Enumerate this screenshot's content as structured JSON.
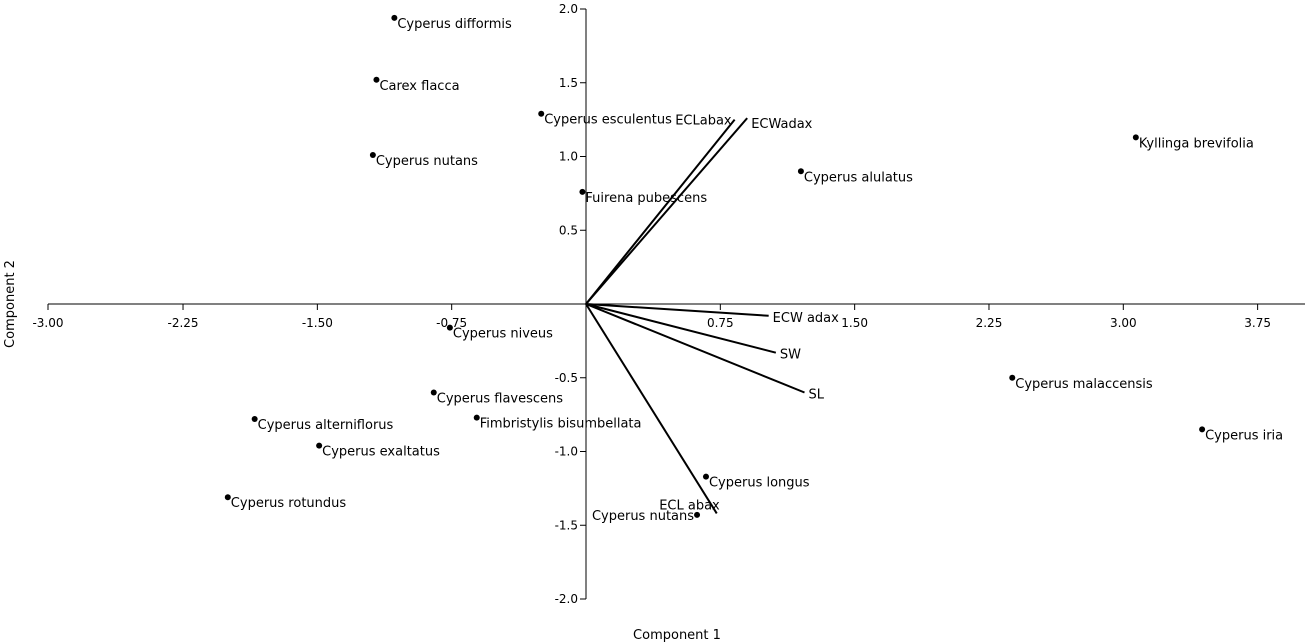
{
  "chart_data": {
    "type": "scatter",
    "xlabel": "Component 1",
    "ylabel": "Component 2",
    "xlim": [
      -3.0,
      4.0
    ],
    "ylim": [
      -2.0,
      2.0
    ],
    "x_ticks": [
      "-3.00",
      "-2.25",
      "-1.50",
      "-0.75",
      "0.75",
      "1.50",
      "2.25",
      "3.00",
      "3.75"
    ],
    "x_tick_values": [
      -3.0,
      -2.25,
      -1.5,
      -0.75,
      0.75,
      1.5,
      2.25,
      3.0,
      3.75
    ],
    "y_ticks": [
      "2.0",
      "1.5",
      "1.0",
      "0.5",
      "-0.5",
      "-1.0",
      "-1.5",
      "-2.0"
    ],
    "y_tick_values": [
      2.0,
      1.5,
      1.0,
      0.5,
      -0.5,
      -1.0,
      -1.5,
      -2.0
    ],
    "points": [
      {
        "label": "Cyperus difformis",
        "x": -1.07,
        "y": 1.94
      },
      {
        "label": "Carex flacca",
        "x": -1.17,
        "y": 1.52
      },
      {
        "label": "Cyperus esculentus",
        "x": -0.25,
        "y": 1.29
      },
      {
        "label": "Cyperus nutans",
        "x": -1.19,
        "y": 1.01
      },
      {
        "label": "Fuirena pubescens",
        "x": -0.02,
        "y": 0.76
      },
      {
        "label": "Cyperus alulatus",
        "x": 1.2,
        "y": 0.9
      },
      {
        "label": "Kyllinga brevifolia",
        "x": 3.07,
        "y": 1.13
      },
      {
        "label": "Cyperus niveus",
        "x": -0.76,
        "y": -0.16
      },
      {
        "label": "Cyperus flavescens",
        "x": -0.85,
        "y": -0.6
      },
      {
        "label": "Fimbristylis bisumbellata",
        "x": -0.61,
        "y": -0.77
      },
      {
        "label": "Cyperus alterniflorus",
        "x": -1.85,
        "y": -0.78
      },
      {
        "label": "Cyperus exaltatus",
        "x": -1.49,
        "y": -0.96
      },
      {
        "label": "Cyperus rotundus",
        "x": -2.0,
        "y": -1.31
      },
      {
        "label": "Cyperus malaccensis",
        "x": 2.38,
        "y": -0.5
      },
      {
        "label": "Cyperus iria",
        "x": 3.44,
        "y": -0.85
      },
      {
        "label": "Cyperus longus",
        "x": 0.67,
        "y": -1.17
      },
      {
        "label": "Cyperus nutans",
        "x": 0.62,
        "y": -1.43
      }
    ],
    "vectors": [
      {
        "label": "ECLabax",
        "x": 0.83,
        "y": 1.25
      },
      {
        "label": "ECWadax",
        "x": 0.9,
        "y": 1.26
      },
      {
        "label": "ECW adax",
        "x": 1.02,
        "y": -0.08
      },
      {
        "label": "SW",
        "x": 1.06,
        "y": -0.33
      },
      {
        "label": "SL",
        "x": 1.22,
        "y": -0.6
      },
      {
        "label": "ECL abax",
        "x": 0.73,
        "y": -1.42
      }
    ]
  }
}
